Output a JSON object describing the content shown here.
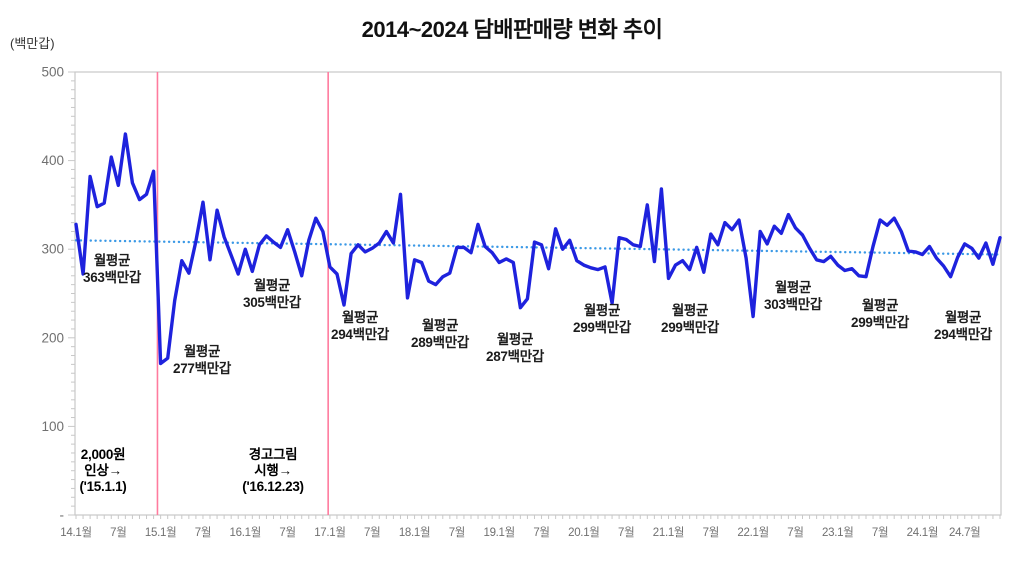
{
  "page": {
    "title": "2014~2024 담배판매량 변화 추이",
    "unit_label": "(백만갑)"
  },
  "colors": {
    "line": "#1e22dd",
    "trend": "#3b99e6",
    "event_line": "#ff7b9e",
    "axis": "#c8c8c8",
    "tick_text": "#707070"
  },
  "chart_data": {
    "type": "line",
    "title": "2014~2024 담배판매량 변화 추이",
    "ylabel": "(백만갑)",
    "ylim": [
      0,
      500
    ],
    "grid": "off",
    "y_ticks": [
      {
        "label": "500",
        "value": 500
      },
      {
        "label": "400",
        "value": 400
      },
      {
        "label": "300",
        "value": 300
      },
      {
        "label": "200",
        "value": 200
      },
      {
        "label": "100",
        "value": 100
      },
      {
        "label": "-",
        "value": 0
      }
    ],
    "x_start": "2014-01",
    "x_tick_labels": [
      "14.1월",
      "7월",
      "15.1월",
      "7월",
      "16.1월",
      "7월",
      "17.1월",
      "7월",
      "18.1월",
      "7월",
      "19.1월",
      "7월",
      "20.1월",
      "7월",
      "21.1월",
      "7월",
      "22.1월",
      "7월",
      "23.1월",
      "7월",
      "24.1월",
      "24.7월"
    ],
    "x_tick_month_indices": [
      0,
      6,
      12,
      18,
      24,
      30,
      36,
      42,
      48,
      54,
      60,
      66,
      72,
      78,
      84,
      90,
      96,
      102,
      108,
      114,
      120,
      126
    ],
    "series": {
      "values": [
        328,
        272,
        382,
        348,
        352,
        404,
        372,
        430,
        375,
        356,
        362,
        388,
        171,
        177,
        242,
        287,
        273,
        309,
        353,
        288,
        344,
        314,
        293,
        272,
        300,
        275,
        305,
        315,
        308,
        302,
        322,
        297,
        270,
        310,
        335,
        320,
        280,
        272,
        237,
        295,
        305,
        297,
        301,
        307,
        320,
        307,
        362,
        245,
        288,
        285,
        264,
        260,
        269,
        273,
        302,
        302,
        296,
        328,
        303,
        296,
        285,
        289,
        285,
        234,
        244,
        308,
        305,
        278,
        323,
        300,
        310,
        287,
        282,
        279,
        277,
        280,
        239,
        313,
        311,
        305,
        303,
        350,
        286,
        368,
        267,
        282,
        287,
        277,
        302,
        274,
        317,
        305,
        330,
        322,
        333,
        290,
        224,
        320,
        306,
        326,
        318,
        339,
        324,
        316,
        301,
        288,
        286,
        292,
        282,
        276,
        278,
        270,
        269,
        303,
        333,
        327,
        335,
        320,
        298,
        297,
        294,
        303,
        290,
        281,
        269,
        291,
        306,
        301,
        290,
        307,
        283,
        313
      ]
    },
    "trendline": {
      "start_value": 310,
      "end_value": 294,
      "style": "dotted"
    },
    "event_lines": [
      {
        "month_index": 11.55,
        "label_lines": [
          "2,000원",
          "인상→",
          "('15.1.1)"
        ]
      },
      {
        "month_index": 35.75,
        "label_lines": [
          "경고그림",
          "시행→",
          "('16.12.23)"
        ]
      }
    ],
    "avg_annotations": [
      {
        "line1": "월평균",
        "line2": "363백만갑"
      },
      {
        "line1": "월평균",
        "line2": "277백만갑"
      },
      {
        "line1": "월평균",
        "line2": "305백만갑"
      },
      {
        "line1": "월평균",
        "line2": "294백만갑"
      },
      {
        "line1": "월평균",
        "line2": "289백만갑"
      },
      {
        "line1": "월평균",
        "line2": "287백만갑"
      },
      {
        "line1": "월평균",
        "line2": "299백만갑"
      },
      {
        "line1": "월평균",
        "line2": "299백만갑"
      },
      {
        "line1": "월평균",
        "line2": "303백만갑"
      },
      {
        "line1": "월평균",
        "line2": "299백만갑"
      },
      {
        "line1": "월평균",
        "line2": "294백만갑"
      }
    ],
    "yearly_averages": {
      "2014": 363,
      "2015": 277,
      "2016": 305,
      "2017": 294,
      "2018": 289,
      "2019": 287,
      "2020": 299,
      "2021": 299,
      "2022": 303,
      "2023": 299,
      "2024": 294
    }
  }
}
